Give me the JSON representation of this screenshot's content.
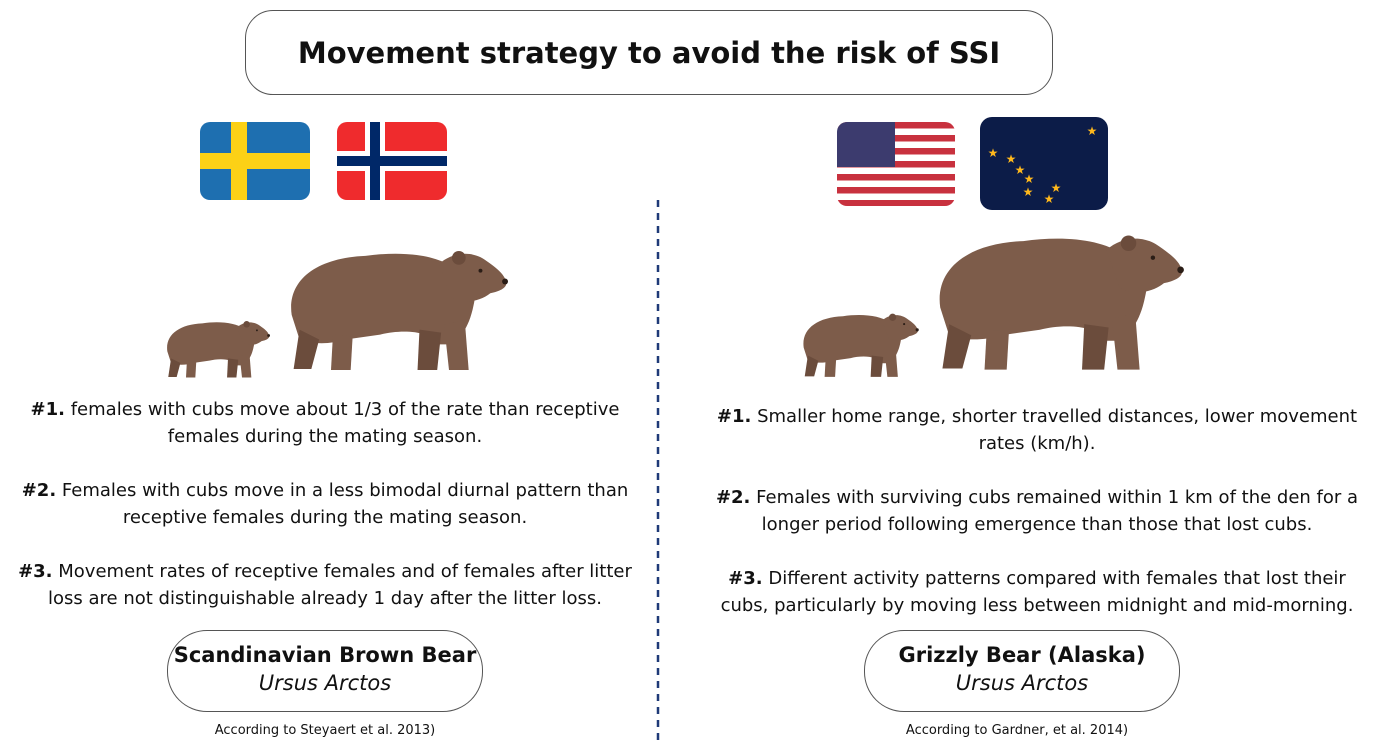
{
  "title": "Movement strategy to avoid the risk of SSI",
  "left": {
    "points": [
      {
        "label": "#1.",
        "text": "females with cubs move about 1/3 of the rate than receptive females during the mating season."
      },
      {
        "label": "#2.",
        "text": "Females with cubs move in a less bimodal diurnal pattern than receptive females during the mating season."
      },
      {
        "label": "#3.",
        "text": "Movement rates of receptive females and of females after litter loss are not distinguishable already 1 day after the litter loss."
      }
    ],
    "name": "Scandinavian Brown Bear",
    "species": "Ursus Arctos",
    "citation": "According to Steyaert et al. 2013)"
  },
  "right": {
    "points": [
      {
        "label": "#1.",
        "text": "Smaller home range, shorter travelled distances, lower movement rates (km/h)."
      },
      {
        "label": "#2.",
        "text": "Females with surviving cubs remained within 1 km of the den for a longer period following emergence than those that lost cubs."
      },
      {
        "label": "#3.",
        "text": "Different activity patterns compared with females that lost their cubs, particularly by moving less between midnight and mid-morning."
      }
    ],
    "name": "Grizzly Bear (Alaska)",
    "species": "Ursus Arctos",
    "citation": "According to Gardner, et al. 2014)"
  }
}
